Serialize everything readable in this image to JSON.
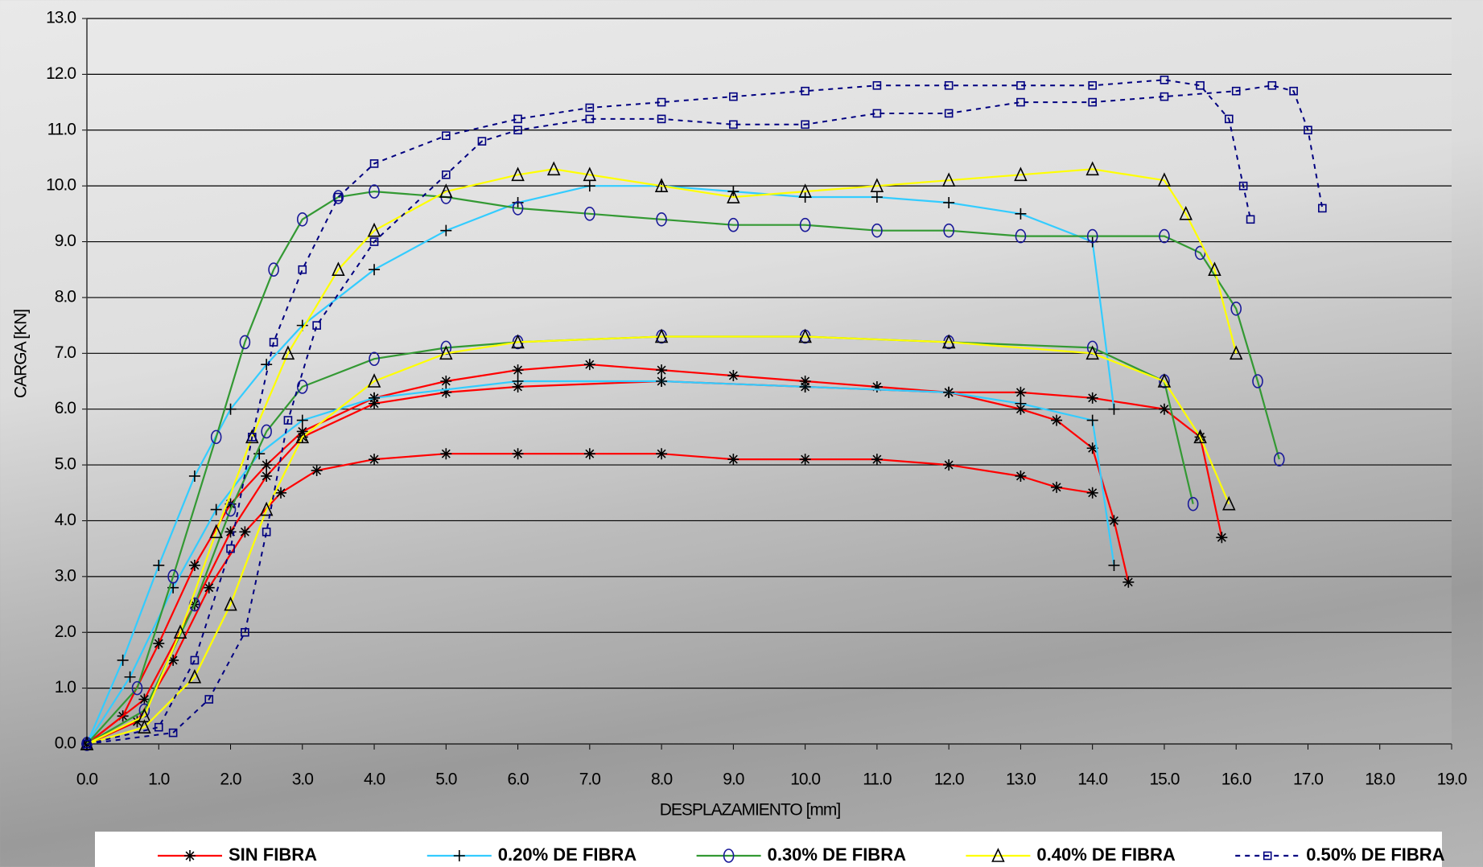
{
  "chart_data": {
    "type": "line",
    "xlabel": "DESPLAZAMIENTO [mm]",
    "ylabel": "CARGA [KN]",
    "xlim": [
      0,
      19
    ],
    "ylim": [
      0,
      13
    ],
    "grid": true,
    "legend": "bottom",
    "xticks": [
      {
        "value": 0,
        "label": "0.0"
      },
      {
        "value": 1,
        "label": "1.0"
      },
      {
        "value": 2,
        "label": "2.0"
      },
      {
        "value": 3,
        "label": "3.0"
      },
      {
        "value": 4,
        "label": "4.0"
      },
      {
        "value": 5,
        "label": "5.0"
      },
      {
        "value": 6,
        "label": "6.0"
      },
      {
        "value": 7,
        "label": "7.0"
      },
      {
        "value": 8,
        "label": "8.0"
      },
      {
        "value": 9,
        "label": "9.0"
      },
      {
        "value": 10,
        "label": "10.0"
      },
      {
        "value": 11,
        "label": "11.0"
      },
      {
        "value": 12,
        "label": "12.0"
      },
      {
        "value": 13,
        "label": "13.0"
      },
      {
        "value": 14,
        "label": "14.0"
      },
      {
        "value": 15,
        "label": "15.0"
      },
      {
        "value": 16,
        "label": "16.0"
      },
      {
        "value": 17,
        "label": "17.0"
      },
      {
        "value": 18,
        "label": "18.0"
      },
      {
        "value": 19,
        "label": "19.0"
      }
    ],
    "yticks": [
      {
        "value": 0,
        "label": "0.0"
      },
      {
        "value": 1,
        "label": "1.0"
      },
      {
        "value": 2,
        "label": "2.0"
      },
      {
        "value": 3,
        "label": "3.0"
      },
      {
        "value": 4,
        "label": "4.0"
      },
      {
        "value": 5,
        "label": "5.0"
      },
      {
        "value": 6,
        "label": "6.0"
      },
      {
        "value": 7,
        "label": "7.0"
      },
      {
        "value": 8,
        "label": "8.0"
      },
      {
        "value": 9,
        "label": "9.0"
      },
      {
        "value": 10,
        "label": "10.0"
      },
      {
        "value": 11,
        "label": "11.0"
      },
      {
        "value": 12,
        "label": "12.0"
      },
      {
        "value": 13,
        "label": "13.0"
      }
    ],
    "series": [
      {
        "name": "SIN FIBRA",
        "color": "#ff0000",
        "marker": "asterisk",
        "marker_color": "#000000",
        "dashed": false,
        "curves": [
          {
            "x": [
              0,
              0.5,
              1,
              1.5,
              2,
              2.5,
              3,
              4,
              5,
              6,
              7,
              8,
              9,
              10,
              11,
              12,
              13,
              13.5,
              14,
              14.3,
              14.5
            ],
            "values": [
              0,
              0.5,
              1.8,
              3.2,
              4.3,
              5.0,
              5.6,
              6.2,
              6.5,
              6.7,
              6.8,
              6.7,
              6.6,
              6.5,
              6.4,
              6.3,
              6.0,
              5.8,
              5.3,
              4.0,
              2.9
            ]
          },
          {
            "x": [
              0,
              0.7,
              1.2,
              1.7,
              2.2,
              2.7,
              3.2,
              4,
              5,
              6,
              7,
              8,
              9,
              10,
              11,
              12,
              13,
              13.5,
              14
            ],
            "values": [
              0,
              0.4,
              1.5,
              2.8,
              3.8,
              4.5,
              4.9,
              5.1,
              5.2,
              5.2,
              5.2,
              5.2,
              5.1,
              5.1,
              5.1,
              5.0,
              4.8,
              4.6,
              4.5
            ]
          },
          {
            "x": [
              0,
              0.8,
              1.5,
              2,
              2.5,
              3,
              4,
              5,
              6,
              8,
              10,
              12,
              13,
              14,
              15,
              15.5,
              15.8
            ],
            "values": [
              0,
              0.8,
              2.5,
              3.8,
              4.8,
              5.5,
              6.1,
              6.3,
              6.4,
              6.5,
              6.4,
              6.3,
              6.3,
              6.2,
              6.0,
              5.5,
              3.7
            ]
          }
        ]
      },
      {
        "name": "0.20% DE FIBRA",
        "color": "#33ccff",
        "marker": "plus",
        "marker_color": "#000000",
        "dashed": false,
        "curves": [
          {
            "x": [
              0,
              0.5,
              1,
              1.5,
              2,
              2.5,
              3,
              4,
              5,
              6,
              7,
              8,
              9,
              10,
              11,
              12,
              13,
              14,
              14.3
            ],
            "values": [
              0,
              1.5,
              3.2,
              4.8,
              6.0,
              6.8,
              7.5,
              8.5,
              9.2,
              9.7,
              10.0,
              10.0,
              9.9,
              9.8,
              9.8,
              9.7,
              9.5,
              9.0,
              6.0
            ]
          },
          {
            "x": [
              0,
              0.6,
              1.2,
              1.8,
              2.4,
              3,
              4,
              6,
              8,
              10,
              12,
              13,
              14,
              14.3
            ],
            "values": [
              0,
              1.2,
              2.8,
              4.2,
              5.2,
              5.8,
              6.2,
              6.5,
              6.5,
              6.4,
              6.3,
              6.1,
              5.8,
              3.2
            ]
          }
        ]
      },
      {
        "name": "0.30% DE FIBRA",
        "color": "#339933",
        "marker": "circle",
        "marker_color": "#1a1a99",
        "dashed": false,
        "curves": [
          {
            "x": [
              0,
              0.7,
              1.2,
              1.8,
              2.2,
              2.6,
              3,
              3.5,
              4,
              5,
              6,
              7,
              8,
              9,
              10,
              11,
              12,
              13,
              14,
              15,
              15.5,
              16,
              16.3,
              16.6
            ],
            "values": [
              0,
              1,
              3,
              5.5,
              7.2,
              8.5,
              9.4,
              9.8,
              9.9,
              9.8,
              9.6,
              9.5,
              9.4,
              9.3,
              9.3,
              9.2,
              9.2,
              9.1,
              9.1,
              9.1,
              8.8,
              7.8,
              6.5,
              5.1
            ]
          },
          {
            "x": [
              0,
              0.8,
              1.5,
              2,
              2.5,
              3,
              4,
              5,
              6,
              8,
              10,
              12,
              14,
              15,
              15.4
            ],
            "values": [
              0,
              0.6,
              2.5,
              4.2,
              5.6,
              6.4,
              6.9,
              7.1,
              7.2,
              7.3,
              7.3,
              7.2,
              7.1,
              6.5,
              4.3
            ]
          }
        ]
      },
      {
        "name": "0.40% DE FIBRA",
        "color": "#ffff00",
        "marker": "triangle",
        "marker_color": "#000000",
        "dashed": false,
        "curves": [
          {
            "x": [
              0,
              0.8,
              1.3,
              1.8,
              2.3,
              2.8,
              3.5,
              4,
              5,
              6,
              6.5,
              7,
              8,
              9,
              10,
              11,
              12,
              13,
              14,
              15,
              15.3,
              15.7,
              16.0
            ],
            "values": [
              0,
              0.5,
              2,
              3.8,
              5.5,
              7.0,
              8.5,
              9.2,
              9.9,
              10.2,
              10.3,
              10.2,
              10.0,
              9.8,
              9.9,
              10.0,
              10.1,
              10.2,
              10.3,
              10.1,
              9.5,
              8.5,
              7.0
            ]
          },
          {
            "x": [
              0,
              0.8,
              1.5,
              2,
              2.5,
              3,
              4,
              5,
              6,
              8,
              10,
              12,
              14,
              15,
              15.5,
              15.9
            ],
            "values": [
              0,
              0.3,
              1.2,
              2.5,
              4.2,
              5.5,
              6.5,
              7.0,
              7.2,
              7.3,
              7.3,
              7.2,
              7.0,
              6.5,
              5.5,
              4.3
            ]
          }
        ]
      },
      {
        "name": "0.50% DE FIBRA",
        "color": "#000080",
        "marker": "square",
        "marker_color": "#000080",
        "dashed": true,
        "curves": [
          {
            "x": [
              0,
              1,
              1.5,
              2,
              2.3,
              2.6,
              3,
              3.5,
              4,
              5,
              6,
              7,
              8,
              9,
              10,
              11,
              12,
              13,
              14,
              15,
              15.5,
              15.9,
              16.1,
              16.2
            ],
            "values": [
              0,
              0.3,
              1.5,
              3.5,
              5.5,
              7.2,
              8.5,
              9.8,
              10.4,
              10.9,
              11.2,
              11.4,
              11.5,
              11.6,
              11.7,
              11.8,
              11.8,
              11.8,
              11.8,
              11.9,
              11.8,
              11.2,
              10.0,
              9.4
            ]
          },
          {
            "x": [
              0,
              1.2,
              1.7,
              2.2,
              2.5,
              2.8,
              3.2,
              4,
              5,
              5.5,
              6,
              7,
              8,
              9,
              10,
              11,
              12,
              13,
              14,
              15,
              16,
              16.5,
              16.8,
              17.0,
              17.2
            ],
            "values": [
              0,
              0.2,
              0.8,
              2.0,
              3.8,
              5.8,
              7.5,
              9.0,
              10.2,
              10.8,
              11.0,
              11.2,
              11.2,
              11.1,
              11.1,
              11.3,
              11.3,
              11.5,
              11.5,
              11.6,
              11.7,
              11.8,
              11.7,
              11.0,
              9.6
            ]
          }
        ]
      }
    ]
  }
}
